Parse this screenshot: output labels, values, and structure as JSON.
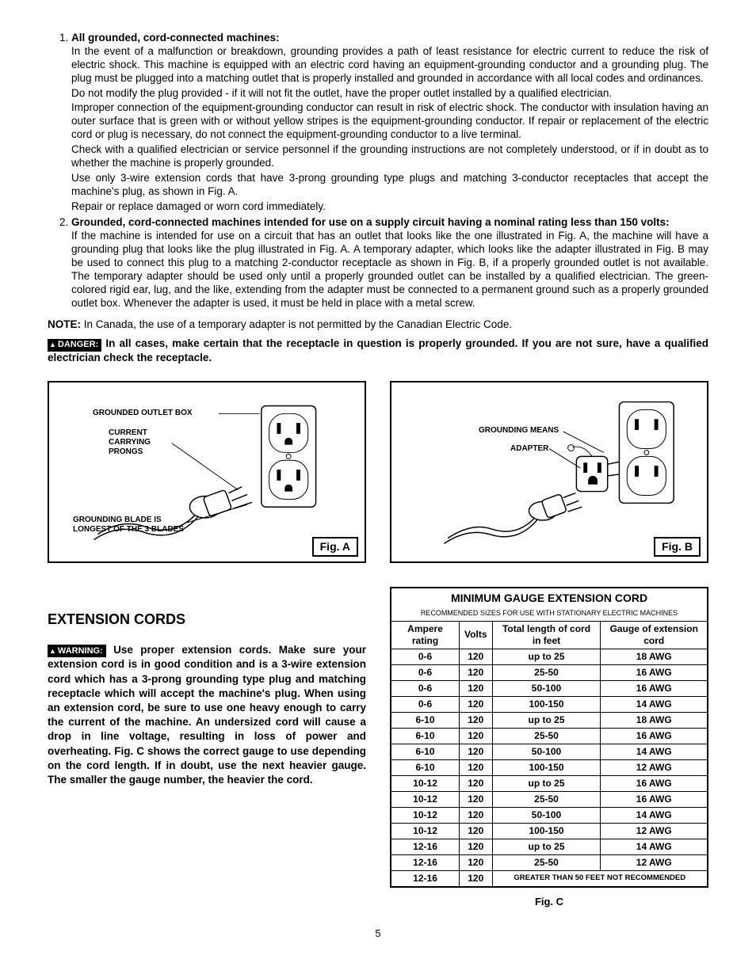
{
  "list": {
    "item1": {
      "title": "All grounded, cord-connected machines:",
      "p1": "In the event of a malfunction or breakdown, grounding provides a path of least resistance for electric current to reduce the risk of electric shock. This machine is equipped with an electric cord having an equipment-grounding conductor and a grounding plug. The plug must be plugged into a matching outlet that is properly installed and grounded in accordance with all local codes and ordinances.",
      "p2": "Do not modify the plug provided - if it will not fit the outlet, have the proper outlet installed by a qualified electrician.",
      "p3": "Improper connection of the equipment-grounding conductor can result in risk of electric shock. The conductor with insulation having an outer surface that is green with or without yellow stripes is the equipment-grounding conductor. If repair or replacement of the electric cord or plug is necessary, do not connect the equipment-grounding conductor to a live terminal.",
      "p4": "Check with a qualified electrician or service personnel if the grounding instructions are not completely understood, or if in doubt as to whether the machine is properly grounded.",
      "p5": "Use only 3-wire extension cords that have 3-prong grounding type plugs and matching 3-conductor receptacles that accept the machine's plug, as shown in Fig. A.",
      "p6": "Repair or replace damaged or worn cord immediately."
    },
    "item2": {
      "title": "Grounded, cord-connected machines intended for use on a supply circuit having a nominal rating less than 150 volts:",
      "p1": "If the machine is intended for use on a circuit that has an outlet that looks like the one illustrated in Fig. A, the machine will have a grounding plug that looks like the plug illustrated in Fig. A. A temporary adapter, which looks like the adapter illustrated in Fig. B may be used to connect this plug to a matching 2-conductor receptacle as shown in Fig. B, if a properly grounded outlet is not available. The temporary adapter should be used only until a properly grounded outlet can be installed by a qualified electrician. The green-colored rigid ear, lug, and the like, extending from the adapter must be connected to a permanent ground such as a properly grounded outlet box. Whenever the adapter is used, it must be held in place with a metal screw."
    }
  },
  "note": {
    "label": "NOTE:",
    "text": "In Canada, the use of a temporary adapter is not permitted by the Canadian Electric Code."
  },
  "danger": {
    "badge": "DANGER:",
    "text": "In all cases, make certain that the receptacle in question is properly grounded. If you are not sure, have a qualified electrician check the receptacle."
  },
  "figA": {
    "label": "Fig. A",
    "t1": "GROUNDED OUTLET BOX",
    "t2": "CURRENT CARRYING PRONGS",
    "t3": "GROUNDING BLADE IS LONGEST OF THE 3 BLADES"
  },
  "figB": {
    "label": "Fig. B",
    "t1": "GROUNDING MEANS",
    "t2": "ADAPTER"
  },
  "extension": {
    "heading": "EXTENSION CORDS",
    "warning_badge": "WARNING:",
    "para": "Use proper extension cords. Make sure your extension cord is in good condition and is a 3-wire extension cord which has a 3-prong grounding type plug and matching receptacle which will accept the machine's plug. When using an extension cord, be sure to use one heavy enough to carry the current of the machine. An undersized cord will cause a drop in line voltage, resulting in loss of power and overheating. Fig. C shows the correct gauge to use depending on the cord length. If in doubt, use the next heavier gauge. The smaller the gauge number, the heavier the cord."
  },
  "table": {
    "title": "MINIMUM GAUGE EXTENSION CORD",
    "subtitle": "RECOMMENDED SIZES FOR USE WITH STATIONARY ELECTRIC MACHINES",
    "headers": {
      "c1": "Ampere rating",
      "c2": "Volts",
      "c3": "Total length of cord in feet",
      "c4": "Gauge of extension cord"
    },
    "rows": [
      [
        "0-6",
        "120",
        "up to 25",
        "18 AWG"
      ],
      [
        "0-6",
        "120",
        "25-50",
        "16 AWG"
      ],
      [
        "0-6",
        "120",
        "50-100",
        "16 AWG"
      ],
      [
        "0-6",
        "120",
        "100-150",
        "14 AWG"
      ],
      [
        "6-10",
        "120",
        "up to 25",
        "18 AWG"
      ],
      [
        "6-10",
        "120",
        "25-50",
        "16 AWG"
      ],
      [
        "6-10",
        "120",
        "50-100",
        "14 AWG"
      ],
      [
        "6-10",
        "120",
        "100-150",
        "12 AWG"
      ],
      [
        "10-12",
        "120",
        "up to 25",
        "16 AWG"
      ],
      [
        "10-12",
        "120",
        "25-50",
        "16 AWG"
      ],
      [
        "10-12",
        "120",
        "50-100",
        "14 AWG"
      ],
      [
        "10-12",
        "120",
        "100-150",
        "12 AWG"
      ],
      [
        "12-16",
        "120",
        "up to 25",
        "14 AWG"
      ],
      [
        "12-16",
        "120",
        "25-50",
        "12 AWG"
      ]
    ],
    "last_row": {
      "c1": "12-16",
      "c2": "120",
      "c34": "GREATER THAN 50 FEET NOT RECOMMENDED"
    },
    "fig_label": "Fig. C"
  },
  "page_number": "5"
}
